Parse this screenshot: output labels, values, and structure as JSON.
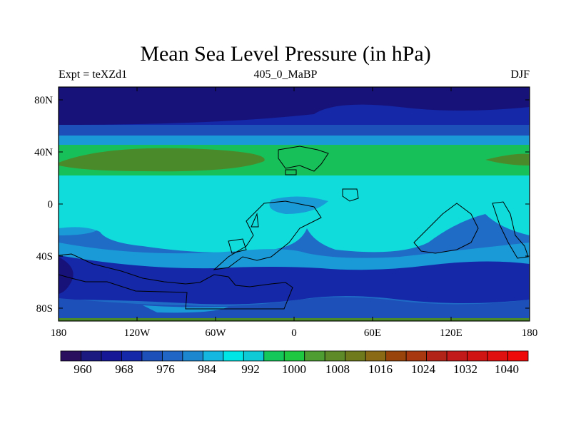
{
  "title": "Mean Sea Level Pressure (in hPa)",
  "subtitle": {
    "left": "Expt = teXZd1",
    "center": "405_0_MaBP",
    "right": "DJF"
  },
  "axes": {
    "lat_labels": [
      "80N",
      "40N",
      "0",
      "40S",
      "80S"
    ],
    "lon_labels": [
      "180",
      "120W",
      "60W",
      "0",
      "60E",
      "120E",
      "180"
    ]
  },
  "colorbar": {
    "labels": [
      "960",
      "968",
      "976",
      "984",
      "992",
      "1000",
      "1008",
      "1016",
      "1024",
      "1032",
      "1040"
    ],
    "colors": [
      "#2a0f5e",
      "#1a1a80",
      "#151796",
      "#1428a8",
      "#1d50b8",
      "#2166c4",
      "#1c86cf",
      "#14b7e0",
      "#00e6e6",
      "#0ec9d6",
      "#15c85a",
      "#1ec840",
      "#4e9d33",
      "#5e8a28",
      "#6e7a1c",
      "#8a6a14",
      "#98440a",
      "#a83810",
      "#b22418",
      "#c21a1a",
      "#d01414",
      "#e01010",
      "#ef0a0a"
    ]
  },
  "contour_colors": {
    "deep_low": "#17127a",
    "low": "#1a2aa8",
    "mid_low": "#1f6cc6",
    "mid": "#1a9ad6",
    "high_mid": "#10dcdc",
    "cyan": "#00e6e6",
    "green": "#18c05a",
    "olive": "#4b8a2a"
  }
}
